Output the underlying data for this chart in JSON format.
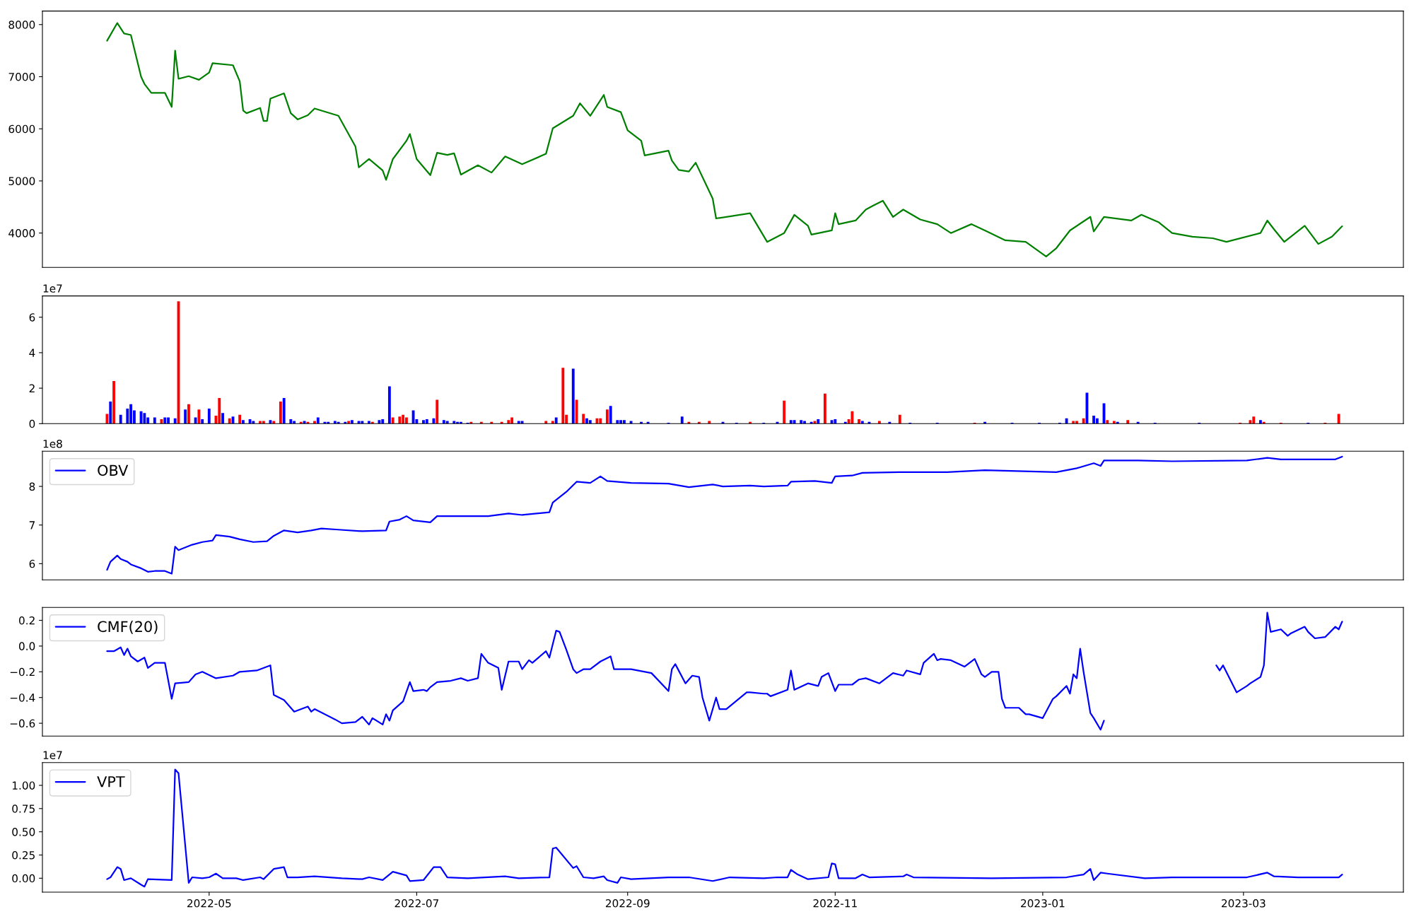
{
  "chart_data": [
    {
      "type": "line",
      "tick_labels": "y",
      "xlim": [
        "2022-03-13",
        "2023-04-17"
      ],
      "xticks": [
        "2022-05",
        "2022-07",
        "2022-09",
        "2022-11",
        "2023-01",
        "2023-03"
      ],
      "ylim": [
        3340,
        8260
      ],
      "yticks": [
        4000,
        5000,
        6000,
        7000,
        8000
      ],
      "x": [
        "2022-04-01",
        "2022-04-04",
        "2022-04-06",
        "2022-04-08",
        "2022-04-11",
        "2022-04-12",
        "2022-04-14",
        "2022-04-18",
        "2022-04-20",
        "2022-04-21",
        "2022-04-22",
        "2022-04-25",
        "2022-04-28",
        "2022-05-01",
        "2022-05-02",
        "2022-05-08",
        "2022-05-10",
        "2022-05-11",
        "2022-05-12",
        "2022-05-16",
        "2022-05-17",
        "2022-05-18",
        "2022-05-19",
        "2022-05-23",
        "2022-05-25",
        "2022-05-27",
        "2022-05-30",
        "2022-06-01",
        "2022-06-08",
        "2022-06-13",
        "2022-06-14",
        "2022-06-17",
        "2022-06-21",
        "2022-06-22",
        "2022-06-24",
        "2022-06-28",
        "2022-06-29",
        "2022-07-01",
        "2022-07-05",
        "2022-07-07",
        "2022-07-10",
        "2022-07-12",
        "2022-07-14",
        "2022-07-19",
        "2022-07-23",
        "2022-07-27",
        "2022-08-01",
        "2022-08-08",
        "2022-08-10",
        "2022-08-16",
        "2022-08-18",
        "2022-08-21",
        "2022-08-25",
        "2022-08-26",
        "2022-08-30",
        "2022-09-01",
        "2022-09-05",
        "2022-09-06",
        "2022-09-13",
        "2022-09-14",
        "2022-09-16",
        "2022-09-19",
        "2022-09-21",
        "2022-09-26",
        "2022-09-27",
        "2022-10-07",
        "2022-10-12",
        "2022-10-17",
        "2022-10-20",
        "2022-10-24",
        "2022-10-25",
        "2022-10-31",
        "2022-11-01",
        "2022-11-02",
        "2022-11-07",
        "2022-11-10",
        "2022-11-12",
        "2022-11-15",
        "2022-11-18",
        "2022-11-21",
        "2022-11-26",
        "2022-12-01",
        "2022-12-05",
        "2022-12-11",
        "2022-12-15",
        "2022-12-21",
        "2022-12-27",
        "2023-01-02",
        "2023-01-05",
        "2023-01-09",
        "2023-01-15",
        "2023-01-16",
        "2023-01-19",
        "2023-01-27",
        "2023-01-30",
        "2023-02-04",
        "2023-02-08",
        "2023-02-14",
        "2023-02-20",
        "2023-02-24",
        "2023-03-06",
        "2023-03-08",
        "2023-03-10",
        "2023-03-13",
        "2023-03-19",
        "2023-03-23",
        "2023-03-27",
        "2023-03-30"
      ],
      "series": [
        {
          "color": "#008000",
          "values": [
            7690,
            8030,
            7830,
            7800,
            7000,
            6860,
            6690,
            6690,
            6420,
            7500,
            6960,
            7010,
            6940,
            7080,
            7260,
            7220,
            6910,
            6350,
            6300,
            6400,
            6150,
            6150,
            6580,
            6680,
            6300,
            6180,
            6260,
            6390,
            6250,
            5660,
            5260,
            5420,
            5200,
            5020,
            5420,
            5770,
            5900,
            5420,
            5110,
            5540,
            5500,
            5530,
            5120,
            5300,
            5160,
            5470,
            5320,
            5520,
            6010,
            6250,
            6490,
            6250,
            6650,
            6420,
            6320,
            5970,
            5770,
            5490,
            5580,
            5390,
            5210,
            5180,
            5350,
            4660,
            4280,
            4380,
            3830,
            4000,
            4350,
            4140,
            3970,
            4050,
            4380,
            4170,
            4240,
            4450,
            4520,
            4620,
            4310,
            4450,
            4260,
            4170,
            4000,
            4170,
            4050,
            3860,
            3830,
            3550,
            3710,
            4050,
            4310,
            4030,
            4310,
            4240,
            4350,
            4210,
            4000,
            3930,
            3900,
            3830,
            4000,
            4240,
            4070,
            3830,
            4140,
            3790,
            3930,
            4130
          ]
        }
      ]
    },
    {
      "type": "bar",
      "tick_labels": "y",
      "xlim": [
        "2022-03-13",
        "2023-04-17"
      ],
      "xticks": [
        "2022-05",
        "2022-07",
        "2022-09",
        "2022-11",
        "2023-01",
        "2023-03"
      ],
      "ylim": [
        0,
        7.2
      ],
      "yticks": [
        0,
        2,
        4,
        6
      ],
      "annotations": [
        "1e7"
      ],
      "x": [
        "2022-04-01",
        "2022-04-02",
        "2022-04-03",
        "2022-04-05",
        "2022-04-07",
        "2022-04-08",
        "2022-04-09",
        "2022-04-11",
        "2022-04-12",
        "2022-04-13",
        "2022-04-15",
        "2022-04-17",
        "2022-04-18",
        "2022-04-19",
        "2022-04-21",
        "2022-04-22",
        "2022-04-24",
        "2022-04-25",
        "2022-04-27",
        "2022-04-28",
        "2022-04-29",
        "2022-05-01",
        "2022-05-03",
        "2022-05-04",
        "2022-05-05",
        "2022-05-07",
        "2022-05-08",
        "2022-05-10",
        "2022-05-11",
        "2022-05-13",
        "2022-05-14",
        "2022-05-16",
        "2022-05-17",
        "2022-05-19",
        "2022-05-20",
        "2022-05-22",
        "2022-05-23",
        "2022-05-25",
        "2022-05-26",
        "2022-05-28",
        "2022-05-29",
        "2022-05-30",
        "2022-06-01",
        "2022-06-02",
        "2022-06-04",
        "2022-06-05",
        "2022-06-07",
        "2022-06-08",
        "2022-06-10",
        "2022-06-11",
        "2022-06-12",
        "2022-06-14",
        "2022-06-15",
        "2022-06-17",
        "2022-06-18",
        "2022-06-20",
        "2022-06-21",
        "2022-06-23",
        "2022-06-24",
        "2022-06-26",
        "2022-06-27",
        "2022-06-28",
        "2022-06-30",
        "2022-07-01",
        "2022-07-03",
        "2022-07-04",
        "2022-07-06",
        "2022-07-07",
        "2022-07-09",
        "2022-07-10",
        "2022-07-12",
        "2022-07-13",
        "2022-07-14",
        "2022-07-16",
        "2022-07-17",
        "2022-07-20",
        "2022-07-23",
        "2022-07-26",
        "2022-07-28",
        "2022-07-29",
        "2022-07-31",
        "2022-08-01",
        "2022-08-08",
        "2022-08-10",
        "2022-08-11",
        "2022-08-13",
        "2022-08-14",
        "2022-08-16",
        "2022-08-17",
        "2022-08-19",
        "2022-08-20",
        "2022-08-21",
        "2022-08-23",
        "2022-08-24",
        "2022-08-26",
        "2022-08-27",
        "2022-08-29",
        "2022-08-30",
        "2022-08-31",
        "2022-09-02",
        "2022-09-05",
        "2022-09-07",
        "2022-09-13",
        "2022-09-17",
        "2022-09-19",
        "2022-09-22",
        "2022-09-25",
        "2022-09-29",
        "2022-10-03",
        "2022-10-07",
        "2022-10-11",
        "2022-10-15",
        "2022-10-17",
        "2022-10-19",
        "2022-10-20",
        "2022-10-22",
        "2022-10-23",
        "2022-10-25",
        "2022-10-26",
        "2022-10-27",
        "2022-10-29",
        "2022-10-31",
        "2022-11-01",
        "2022-11-04",
        "2022-11-05",
        "2022-11-06",
        "2022-11-08",
        "2022-11-09",
        "2022-11-11",
        "2022-11-14",
        "2022-11-17",
        "2022-11-20",
        "2022-11-23",
        "2022-12-01",
        "2022-12-12",
        "2022-12-15",
        "2022-12-23",
        "2022-12-31",
        "2023-01-06",
        "2023-01-08",
        "2023-01-10",
        "2023-01-11",
        "2023-01-13",
        "2023-01-14",
        "2023-01-16",
        "2023-01-17",
        "2023-01-19",
        "2023-01-20",
        "2023-01-22",
        "2023-01-23",
        "2023-01-26",
        "2023-01-29",
        "2023-02-03",
        "2023-02-16",
        "2023-02-28",
        "2023-03-03",
        "2023-03-04",
        "2023-03-06",
        "2023-03-07",
        "2023-03-12",
        "2023-03-20",
        "2023-03-25",
        "2023-03-29"
      ],
      "values": [
        0.55,
        1.25,
        2.4,
        0.5,
        0.85,
        1.1,
        0.75,
        0.7,
        0.6,
        0.35,
        0.35,
        0.25,
        0.35,
        0.35,
        0.3,
        6.9,
        0.8,
        1.1,
        0.35,
        0.8,
        0.25,
        0.85,
        0.45,
        1.45,
        0.6,
        0.3,
        0.4,
        0.5,
        0.2,
        0.25,
        0.15,
        0.15,
        0.15,
        0.2,
        0.15,
        1.25,
        1.45,
        0.25,
        0.15,
        0.1,
        0.15,
        0.1,
        0.15,
        0.35,
        0.1,
        0.1,
        0.15,
        0.1,
        0.1,
        0.15,
        0.2,
        0.15,
        0.15,
        0.15,
        0.1,
        0.2,
        0.25,
        2.1,
        0.35,
        0.4,
        0.5,
        0.35,
        0.75,
        0.25,
        0.2,
        0.25,
        0.3,
        1.35,
        0.2,
        0.15,
        0.15,
        0.1,
        0.1,
        0.05,
        0.1,
        0.1,
        0.1,
        0.1,
        0.2,
        0.35,
        0.15,
        0.15,
        0.15,
        0.15,
        0.35,
        3.15,
        0.5,
        3.1,
        1.35,
        0.55,
        0.3,
        0.2,
        0.3,
        0.3,
        0.8,
        1.0,
        0.2,
        0.2,
        0.2,
        0.15,
        0.1,
        0.1,
        0.05,
        0.4,
        0.1,
        0.1,
        0.15,
        0.1,
        0.05,
        0.1,
        0.05,
        0.1,
        1.3,
        0.2,
        0.2,
        0.2,
        0.15,
        0.1,
        0.15,
        0.25,
        1.7,
        0.2,
        0.25,
        0.1,
        0.25,
        0.7,
        0.25,
        0.15,
        0.1,
        0.15,
        0.1,
        0.5,
        0.05,
        0.05,
        0.05,
        0.1,
        0.05,
        0.05,
        0.05,
        0.3,
        0.15,
        0.15,
        0.3,
        1.75,
        0.45,
        0.3,
        1.15,
        0.2,
        0.15,
        0.1,
        0.2,
        0.1,
        0.05,
        0.05,
        0.05,
        0.2,
        0.4,
        0.2,
        0.1,
        0.05,
        0.05,
        0.05,
        0.55
      ],
      "colors": [
        "#ff0000",
        "#0000ff",
        "#ff0000",
        "#0000ff",
        "#0000ff",
        "#0000ff",
        "#0000ff",
        "#0000ff",
        "#0000ff",
        "#0000ff",
        "#0000ff",
        "#ff0000",
        "#0000ff",
        "#0000ff",
        "#0000ff",
        "#ff0000",
        "#0000ff",
        "#ff0000",
        "#0000ff",
        "#ff0000",
        "#0000ff",
        "#0000ff",
        "#ff0000",
        "#ff0000",
        "#0000ff",
        "#ff0000",
        "#0000ff",
        "#ff0000",
        "#0000ff",
        "#0000ff",
        "#0000ff",
        "#ff0000",
        "#ff0000",
        "#0000ff",
        "#ff0000",
        "#ff0000",
        "#0000ff",
        "#0000ff",
        "#0000ff",
        "#ff0000",
        "#0000ff",
        "#ff0000",
        "#ff0000",
        "#0000ff",
        "#0000ff",
        "#0000ff",
        "#0000ff",
        "#0000ff",
        "#0000ff",
        "#ff0000",
        "#0000ff",
        "#0000ff",
        "#0000ff",
        "#0000ff",
        "#ff0000",
        "#0000ff",
        "#0000ff",
        "#0000ff",
        "#ff0000",
        "#ff0000",
        "#ff0000",
        "#ff0000",
        "#0000ff",
        "#0000ff",
        "#0000ff",
        "#0000ff",
        "#0000ff",
        "#ff0000",
        "#0000ff",
        "#0000ff",
        "#0000ff",
        "#0000ff",
        "#0000ff",
        "#0000ff",
        "#ff0000",
        "#ff0000",
        "#ff0000",
        "#ff0000",
        "#ff0000",
        "#ff0000",
        "#0000ff",
        "#0000ff",
        "#ff0000",
        "#ff0000",
        "#0000ff",
        "#ff0000",
        "#ff0000",
        "#0000ff",
        "#ff0000",
        "#ff0000",
        "#0000ff",
        "#0000ff",
        "#ff0000",
        "#ff0000",
        "#ff0000",
        "#0000ff",
        "#0000ff",
        "#0000ff",
        "#0000ff",
        "#0000ff",
        "#0000ff",
        "#0000ff",
        "#0000ff",
        "#0000ff",
        "#ff0000",
        "#ff0000",
        "#ff0000",
        "#0000ff",
        "#0000ff",
        "#ff0000",
        "#0000ff",
        "#0000ff",
        "#ff0000",
        "#0000ff",
        "#0000ff",
        "#0000ff",
        "#0000ff",
        "#0000ff",
        "#ff0000",
        "#0000ff",
        "#ff0000",
        "#0000ff",
        "#0000ff",
        "#0000ff",
        "#ff0000",
        "#ff0000",
        "#ff0000",
        "#0000ff",
        "#0000ff",
        "#ff0000",
        "#0000ff",
        "#ff0000",
        "#0000ff",
        "#0000ff",
        "#ff0000",
        "#0000ff",
        "#0000ff",
        "#0000ff",
        "#0000ff",
        "#0000ff",
        "#ff0000",
        "#ff0000",
        "#ff0000",
        "#0000ff",
        "#0000ff",
        "#0000ff",
        "#0000ff",
        "#ff0000",
        "#ff0000",
        "#0000ff",
        "#ff0000",
        "#0000ff",
        "#0000ff",
        "#0000ff",
        "#ff0000",
        "#ff0000",
        "#ff0000",
        "#0000ff",
        "#ff0000",
        "#ff0000",
        "#0000ff",
        "#ff0000",
        "#ff0000"
      ]
    },
    {
      "type": "line",
      "tick_labels": "y",
      "legend": "top left",
      "xlim": [
        "2022-03-13",
        "2023-04-17"
      ],
      "xticks": [
        "2022-05",
        "2022-07",
        "2022-09",
        "2022-11",
        "2023-01",
        "2023-03"
      ],
      "ylim": [
        5.58,
        8.91
      ],
      "yticks": [
        6,
        7,
        8
      ],
      "annotations": [
        "1e8"
      ],
      "x": [
        "2022-04-01",
        "2022-04-02",
        "2022-04-04",
        "2022-04-05",
        "2022-04-07",
        "2022-04-08",
        "2022-04-11",
        "2022-04-13",
        "2022-04-15",
        "2022-04-18",
        "2022-04-20",
        "2022-04-21",
        "2022-04-22",
        "2022-04-26",
        "2022-04-29",
        "2022-05-02",
        "2022-05-03",
        "2022-05-07",
        "2022-05-10",
        "2022-05-14",
        "2022-05-18",
        "2022-05-20",
        "2022-05-23",
        "2022-05-27",
        "2022-05-31",
        "2022-06-03",
        "2022-06-08",
        "2022-06-15",
        "2022-06-22",
        "2022-06-23",
        "2022-06-26",
        "2022-06-28",
        "2022-06-30",
        "2022-07-05",
        "2022-07-07",
        "2022-07-11",
        "2022-07-22",
        "2022-07-28",
        "2022-08-01",
        "2022-08-09",
        "2022-08-10",
        "2022-08-14",
        "2022-08-17",
        "2022-08-21",
        "2022-08-24",
        "2022-08-26",
        "2022-09-02",
        "2022-09-13",
        "2022-09-19",
        "2022-09-26",
        "2022-09-29",
        "2022-10-07",
        "2022-10-11",
        "2022-10-18",
        "2022-10-19",
        "2022-10-26",
        "2022-10-31",
        "2022-11-01",
        "2022-11-06",
        "2022-11-09",
        "2022-11-21",
        "2022-12-04",
        "2022-12-15",
        "2023-01-05",
        "2023-01-11",
        "2023-01-16",
        "2023-01-18",
        "2023-01-19",
        "2023-01-29",
        "2023-02-08",
        "2023-03-02",
        "2023-03-08",
        "2023-03-12",
        "2023-03-28",
        "2023-03-30"
      ],
      "series": [
        {
          "name": "OBV",
          "color": "#0000ff",
          "values": [
            5.84,
            6.05,
            6.21,
            6.12,
            6.05,
            5.98,
            5.88,
            5.79,
            5.81,
            5.81,
            5.74,
            6.44,
            6.35,
            6.49,
            6.56,
            6.6,
            6.74,
            6.7,
            6.63,
            6.56,
            6.58,
            6.72,
            6.86,
            6.81,
            6.86,
            6.91,
            6.88,
            6.84,
            6.86,
            7.09,
            7.14,
            7.23,
            7.12,
            7.07,
            7.23,
            7.23,
            7.23,
            7.3,
            7.26,
            7.33,
            7.58,
            7.86,
            8.12,
            8.09,
            8.26,
            8.14,
            8.09,
            8.07,
            7.98,
            8.05,
            8.0,
            8.02,
            8.0,
            8.02,
            8.12,
            8.14,
            8.09,
            8.26,
            8.28,
            8.35,
            8.37,
            8.37,
            8.42,
            8.37,
            8.47,
            8.6,
            8.53,
            8.67,
            8.67,
            8.65,
            8.67,
            8.74,
            8.7,
            8.7,
            8.77
          ]
        }
      ]
    },
    {
      "type": "line",
      "tick_labels": "y",
      "legend": "top left",
      "xlim": [
        "2022-03-13",
        "2023-04-17"
      ],
      "xticks": [
        "2022-05",
        "2022-07",
        "2022-09",
        "2022-11",
        "2023-01",
        "2023-03"
      ],
      "ylim": [
        -0.7,
        0.3
      ],
      "yticks": [
        {
          "value": -0.6,
          "label": "−0.6"
        },
        {
          "value": -0.4,
          "label": "−0.4"
        },
        {
          "value": -0.2,
          "label": "−0.2"
        },
        {
          "value": 0,
          "label": "0.0"
        },
        0.2
      ],
      "x": [
        "2022-04-01",
        "2022-04-03",
        "2022-04-05",
        "2022-04-06",
        "2022-04-07",
        "2022-04-08",
        "2022-04-10",
        "2022-04-12",
        "2022-04-13",
        "2022-04-15",
        "2022-04-18",
        "2022-04-20",
        "2022-04-21",
        "2022-04-25",
        "2022-04-27",
        "2022-04-29",
        "2022-05-03",
        "2022-05-08",
        "2022-05-10",
        "2022-05-15",
        "2022-05-19",
        "2022-05-20",
        "2022-05-23",
        "2022-05-26",
        "2022-05-30",
        "2022-05-31",
        "2022-06-01",
        "2022-06-07",
        "2022-06-09",
        "2022-06-13",
        "2022-06-15",
        "2022-06-17",
        "2022-06-18",
        "2022-06-21",
        "2022-06-22",
        "2022-06-23",
        "2022-06-24",
        "2022-06-27",
        "2022-06-29",
        "2022-06-30",
        "2022-07-03",
        "2022-07-04",
        "2022-07-05",
        "2022-07-07",
        "2022-07-11",
        "2022-07-14",
        "2022-07-16",
        "2022-07-19",
        "2022-07-20",
        "2022-07-22",
        "2022-07-25",
        "2022-07-26",
        "2022-07-28",
        "2022-07-31",
        "2022-08-01",
        "2022-08-03",
        "2022-08-04",
        "2022-08-08",
        "2022-08-09",
        "2022-08-11",
        "2022-08-12",
        "2022-08-14",
        "2022-08-16",
        "2022-08-17",
        "2022-08-19",
        "2022-08-21",
        "2022-08-24",
        "2022-08-27",
        "2022-08-28",
        "2022-08-30",
        "2022-09-02",
        "2022-09-08",
        "2022-09-13",
        "2022-09-14",
        "2022-09-15",
        "2022-09-18",
        "2022-09-20",
        "2022-09-22",
        "2022-09-23",
        "2022-09-25",
        "2022-09-27",
        "2022-09-28",
        "2022-09-30",
        "2022-10-06",
        "2022-10-07",
        "2022-10-11",
        "2022-10-12",
        "2022-10-13",
        "2022-10-18",
        "2022-10-19",
        "2022-10-20",
        "2022-10-24",
        "2022-10-27",
        "2022-10-28",
        "2022-10-30",
        "2022-11-01",
        "2022-11-02",
        "2022-11-06",
        "2022-11-08",
        "2022-11-10",
        "2022-11-14",
        "2022-11-18",
        "2022-11-21",
        "2022-11-22",
        "2022-11-26",
        "2022-11-27",
        "2022-11-30",
        "2022-12-01",
        "2022-12-02",
        "2022-12-05",
        "2022-12-09",
        "2022-12-12",
        "2022-12-14",
        "2022-12-15",
        "2022-12-17",
        "2022-12-19",
        "2022-12-20",
        "2022-12-21",
        "2022-12-23",
        "2022-12-25",
        "2022-12-27",
        "2022-12-28",
        "2023-01-01",
        "2023-01-04",
        "2023-01-05",
        "2023-01-08",
        "2023-01-09",
        "2023-01-10",
        "2023-01-11",
        "2023-01-12",
        "2023-01-13",
        "2023-01-15",
        "2023-01-16",
        "2023-01-18",
        "2023-01-19",
        "2023-02-05",
        "2023-02-21",
        "2023-02-22",
        "2023-02-23",
        "2023-02-27",
        "2023-03-02",
        "2023-03-03",
        "2023-03-06",
        "2023-03-07",
        "2023-03-08",
        "2023-03-09",
        "2023-03-12",
        "2023-03-14",
        "2023-03-15",
        "2023-03-19",
        "2023-03-20",
        "2023-03-22",
        "2023-03-25",
        "2023-03-28",
        "2023-03-29",
        "2023-03-30"
      ],
      "series": [
        {
          "name": "CMF(20)",
          "color": "#0000ff",
          "values": [
            -0.04,
            -0.04,
            -0.01,
            -0.07,
            -0.02,
            -0.08,
            -0.12,
            -0.09,
            -0.17,
            -0.13,
            -0.13,
            -0.41,
            -0.29,
            -0.28,
            -0.22,
            -0.2,
            -0.25,
            -0.23,
            -0.2,
            -0.19,
            -0.15,
            -0.38,
            -0.42,
            -0.51,
            -0.47,
            -0.51,
            -0.49,
            -0.57,
            -0.6,
            -0.59,
            -0.55,
            -0.61,
            -0.56,
            -0.61,
            -0.53,
            -0.58,
            -0.5,
            -0.43,
            -0.28,
            -0.35,
            -0.34,
            -0.35,
            -0.32,
            -0.28,
            -0.27,
            -0.25,
            -0.27,
            -0.25,
            -0.06,
            -0.13,
            -0.17,
            -0.34,
            -0.12,
            -0.12,
            -0.18,
            -0.11,
            -0.13,
            -0.04,
            -0.09,
            0.12,
            0.11,
            -0.03,
            -0.18,
            -0.21,
            -0.18,
            -0.18,
            -0.12,
            -0.08,
            -0.18,
            -0.18,
            -0.18,
            -0.21,
            -0.35,
            -0.18,
            -0.14,
            -0.29,
            -0.23,
            -0.24,
            -0.4,
            -0.58,
            -0.4,
            -0.49,
            -0.49,
            -0.36,
            -0.36,
            -0.37,
            -0.37,
            -0.39,
            -0.34,
            -0.19,
            -0.34,
            -0.29,
            -0.31,
            -0.24,
            -0.21,
            -0.35,
            -0.3,
            -0.3,
            -0.26,
            -0.25,
            -0.29,
            -0.21,
            -0.23,
            -0.19,
            -0.22,
            -0.13,
            -0.06,
            -0.11,
            -0.1,
            -0.11,
            -0.16,
            -0.1,
            -0.22,
            -0.24,
            -0.2,
            -0.2,
            -0.41,
            -0.48,
            -0.48,
            -0.48,
            -0.53,
            -0.53,
            -0.56,
            -0.41,
            -0.39,
            -0.31,
            -0.37,
            -0.22,
            -0.25,
            -0.02,
            -0.2,
            -0.52,
            -0.56,
            -0.65,
            -0.58,
            null,
            -0.15,
            -0.19,
            -0.15,
            -0.36,
            -0.31,
            -0.29,
            -0.24,
            -0.15,
            0.26,
            0.11,
            0.13,
            0.08,
            0.1,
            0.15,
            0.11,
            0.06,
            0.07,
            0.15,
            0.13,
            0.19
          ]
        }
      ]
    },
    {
      "type": "line",
      "legend": "top left",
      "xlim": [
        "2022-03-13",
        "2023-04-17"
      ],
      "xticks": [
        "2022-05",
        "2022-07",
        "2022-09",
        "2022-11",
        "2023-01",
        "2023-03"
      ],
      "ylim": [
        -0.15,
        1.245
      ],
      "yticks": [
        {
          "value": 0,
          "label": "0.00"
        },
        0.25,
        {
          "value": 0.5,
          "label": "0.50"
        },
        0.75,
        {
          "value": 1,
          "label": "1.00"
        }
      ],
      "annotations": [
        "1e7"
      ],
      "x": [
        "2022-04-01",
        "2022-04-02",
        "2022-04-04",
        "2022-04-05",
        "2022-04-06",
        "2022-04-08",
        "2022-04-11",
        "2022-04-12",
        "2022-04-13",
        "2022-04-20",
        "2022-04-21",
        "2022-04-22",
        "2022-04-25",
        "2022-04-26",
        "2022-04-29",
        "2022-05-01",
        "2022-05-03",
        "2022-05-05",
        "2022-05-09",
        "2022-05-11",
        "2022-05-16",
        "2022-05-17",
        "2022-05-20",
        "2022-05-23",
        "2022-05-24",
        "2022-05-27",
        "2022-06-01",
        "2022-06-09",
        "2022-06-15",
        "2022-06-17",
        "2022-06-21",
        "2022-06-24",
        "2022-06-28",
        "2022-06-29",
        "2022-07-03",
        "2022-07-06",
        "2022-07-08",
        "2022-07-10",
        "2022-07-16",
        "2022-07-27",
        "2022-07-31",
        "2022-08-09",
        "2022-08-10",
        "2022-08-11",
        "2022-08-16",
        "2022-08-17",
        "2022-08-19",
        "2022-08-22",
        "2022-08-25",
        "2022-08-26",
        "2022-08-29",
        "2022-08-30",
        "2022-09-02",
        "2022-09-13",
        "2022-09-19",
        "2022-09-26",
        "2022-10-01",
        "2022-10-11",
        "2022-10-15",
        "2022-10-18",
        "2022-10-19",
        "2022-10-21",
        "2022-10-24",
        "2022-10-30",
        "2022-10-31",
        "2022-11-01",
        "2022-11-02",
        "2022-11-07",
        "2022-11-09",
        "2022-11-11",
        "2022-11-21",
        "2022-11-22",
        "2022-11-24",
        "2022-12-17",
        "2023-01-08",
        "2023-01-13",
        "2023-01-15",
        "2023-01-16",
        "2023-01-18",
        "2023-01-20",
        "2023-01-31",
        "2023-02-08",
        "2023-03-02",
        "2023-03-08",
        "2023-03-10",
        "2023-03-17",
        "2023-03-29",
        "2023-03-30"
      ],
      "series": [
        {
          "name": "VPT",
          "color": "#0000ff",
          "values": [
            -0.01,
            0.01,
            0.12,
            0.1,
            -0.02,
            0,
            -0.07,
            -0.09,
            -0.01,
            -0.02,
            1.17,
            1.13,
            -0.05,
            0.01,
            0,
            0.01,
            0.05,
            0,
            0,
            -0.02,
            0.01,
            -0.01,
            0.1,
            0.12,
            0.01,
            0.01,
            0.02,
            0,
            -0.01,
            0.01,
            -0.02,
            0.07,
            0.03,
            -0.03,
            -0.02,
            0.12,
            0.12,
            0.01,
            0,
            0.02,
            0,
            0.01,
            0.32,
            0.33,
            0.11,
            0.13,
            0.01,
            0,
            0.02,
            -0.02,
            -0.05,
            0.01,
            -0.01,
            0.01,
            0.01,
            -0.03,
            0.01,
            0,
            0.01,
            0.01,
            0.09,
            0.04,
            -0.01,
            0.01,
            0.16,
            0.15,
            0,
            0,
            0.04,
            0.01,
            0.02,
            0.04,
            0.01,
            0,
            0.01,
            0.04,
            0.1,
            -0.02,
            0.06,
            0.05,
            0,
            0.01,
            0.01,
            0.06,
            0.02,
            0.01,
            0.01,
            0.04
          ]
        }
      ]
    }
  ]
}
